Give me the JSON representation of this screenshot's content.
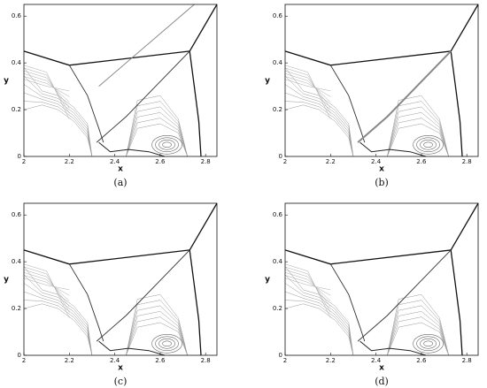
{
  "panels": [
    {
      "label": "(a)",
      "xlabel": "x",
      "ylabel": "y",
      "xlim": [
        2,
        2.85
      ],
      "ylim": [
        0,
        0.65
      ],
      "xticks": [
        2,
        2.2,
        2.4,
        2.6,
        2.8
      ],
      "yticks": [
        0,
        0.2,
        0.4,
        0.6
      ]
    },
    {
      "label": "(b)",
      "xlabel": "x",
      "ylabel": "y",
      "xlim": [
        2,
        2.85
      ],
      "ylim": [
        0,
        0.65
      ],
      "xticks": [
        2,
        2.2,
        2.4,
        2.6,
        2.8
      ],
      "yticks": [
        0,
        0.2,
        0.4,
        0.6
      ]
    },
    {
      "label": "(c)",
      "xlabel": "x",
      "ylabel": "y",
      "xlim": [
        2,
        2.85
      ],
      "ylim": [
        0,
        0.65
      ],
      "xticks": [
        2,
        2.2,
        2.4,
        2.6,
        2.8
      ],
      "yticks": [
        0,
        0.2,
        0.4,
        0.6
      ]
    },
    {
      "label": "(d)",
      "xlabel": "x",
      "ylabel": "y",
      "xlim": [
        2,
        2.85
      ],
      "ylim": [
        0,
        0.65
      ],
      "xticks": [
        2,
        2.2,
        2.4,
        2.6,
        2.8
      ],
      "yticks": [
        0,
        0.2,
        0.4,
        0.6
      ]
    }
  ]
}
